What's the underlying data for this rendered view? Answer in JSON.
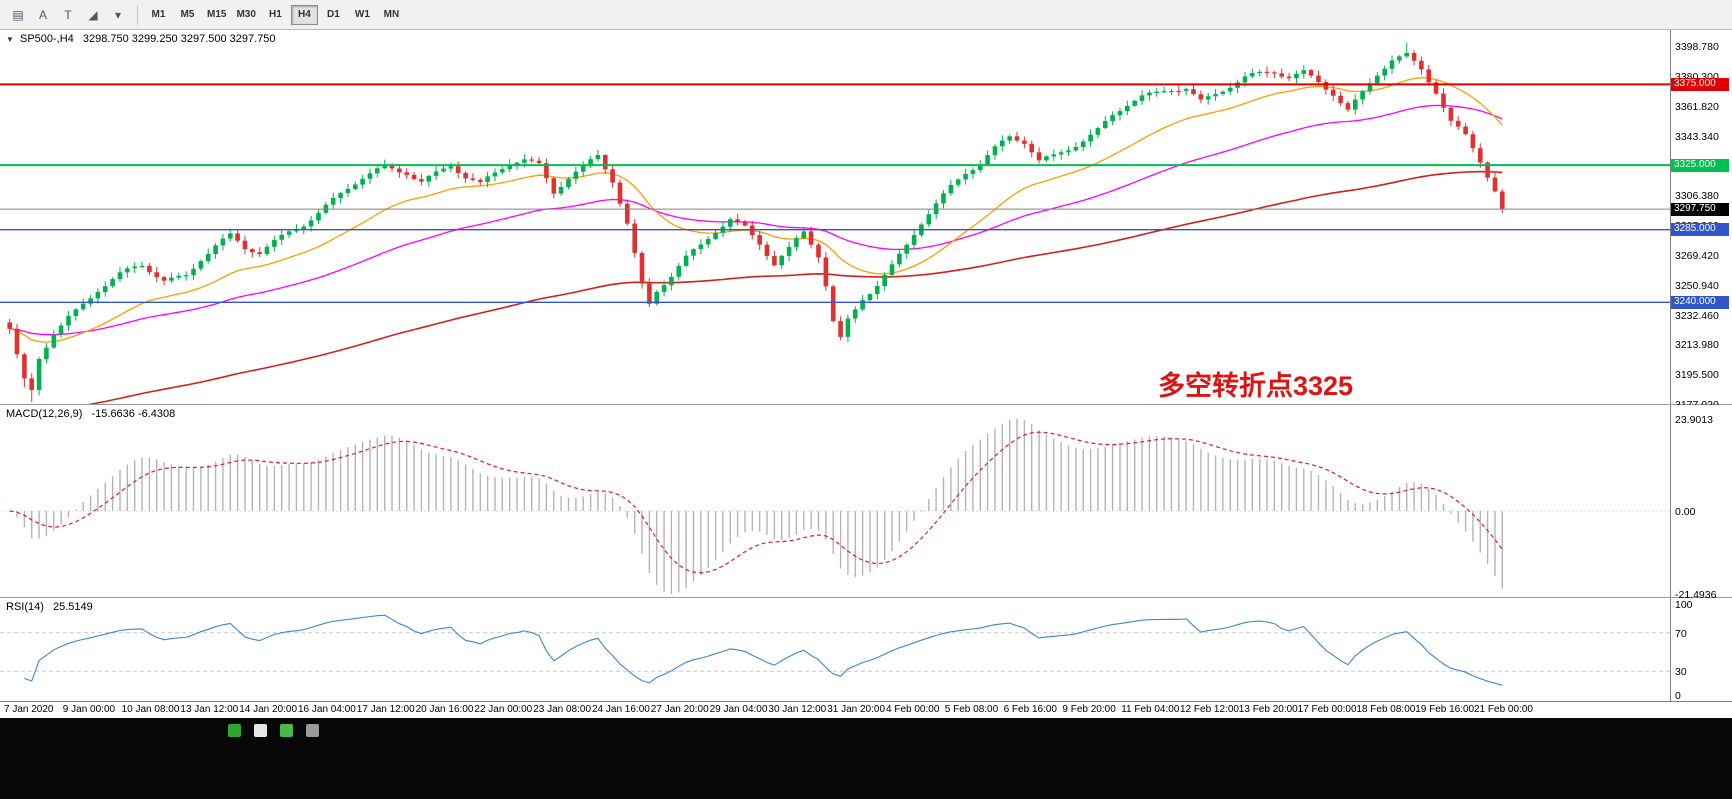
{
  "toolbar": {
    "icons": [
      {
        "name": "grid-icon",
        "glyph": "▤"
      },
      {
        "name": "cursor-a-icon",
        "glyph": "A"
      },
      {
        "name": "text-icon",
        "glyph": "T"
      },
      {
        "name": "shapes-icon",
        "glyph": "◢"
      },
      {
        "name": "dropdown-caret-icon",
        "glyph": "▾"
      }
    ],
    "timeframes": [
      "M1",
      "M5",
      "M15",
      "M30",
      "H1",
      "H4",
      "D1",
      "W1",
      "MN"
    ],
    "active_timeframe": "H4"
  },
  "chart": {
    "dropdown_glyph": "▼",
    "title_symbol": "SP500-,H4",
    "title_ohlc": "3298.750 3299.250 3297.500 3297.750",
    "annotation": "多空转折点3325",
    "price_axis_labels": [
      "3398.780",
      "3380.300",
      "3361.820",
      "3343.340",
      "3324.860",
      "3306.380",
      "3287.900",
      "3269.420",
      "3250.940",
      "3232.460",
      "3213.980",
      "3195.500",
      "3177.020"
    ],
    "price_max": 3398.78,
    "price_min": 3177.02,
    "hlines": [
      {
        "price": 3375.0,
        "label": "3375.000",
        "color": "#e00000",
        "thickness": 2
      },
      {
        "price": 3325.0,
        "label": "3325.000",
        "color": "#00c050",
        "thickness": 2
      },
      {
        "price": 3285.0,
        "label": "3285.000",
        "color": "#3355cc",
        "thickness": 1.4
      },
      {
        "price": 3240.0,
        "label": "3240.000",
        "color": "#3355cc",
        "thickness": 1.4
      }
    ],
    "current_price": 3297.75,
    "current_price_label": "3297.750"
  },
  "macd": {
    "label": "MACD(12,26,9)",
    "values_text": "-15.6636 -6.4308",
    "axis_labels": [
      "23.9013",
      "0.00",
      "-21.4936"
    ],
    "axis_values": [
      23.9013,
      0,
      -21.4936
    ]
  },
  "rsi": {
    "label": "RSI(14)",
    "value_text": "25.5149",
    "axis_labels": [
      "100",
      "70",
      "30",
      "0"
    ],
    "axis_values": [
      100,
      70,
      30,
      0
    ],
    "levels": [
      70,
      30
    ]
  },
  "time_axis": {
    "labels": [
      "7 Jan 2020",
      "9 Jan 00:00",
      "10 Jan 08:00",
      "13 Jan 12:00",
      "14 Jan 20:00",
      "16 Jan 04:00",
      "17 Jan 12:00",
      "20 Jan 16:00",
      "22 Jan 00:00",
      "23 Jan 08:00",
      "24 Jan 16:00",
      "27 Jan 20:00",
      "29 Jan 04:00",
      "30 Jan 12:00",
      "31 Jan 20:00",
      "4 Feb 00:00",
      "5 Feb 08:00",
      "6 Feb 16:00",
      "9 Feb 20:00",
      "11 Feb 04:00",
      "12 Feb 12:00",
      "13 Feb 20:00",
      "17 Feb 00:00",
      "18 Feb 08:00",
      "19 Feb 16:00",
      "21 Feb 00:00"
    ]
  },
  "chart_data": {
    "type": "candlestick",
    "symbol": "SP500-",
    "timeframe": "H4",
    "bars": 204,
    "price_anchors": [
      [
        0,
        3222
      ],
      [
        1,
        3205
      ],
      [
        2,
        3190
      ],
      [
        3,
        3184
      ],
      [
        4,
        3205
      ],
      [
        6,
        3222
      ],
      [
        8,
        3232
      ],
      [
        10,
        3240
      ],
      [
        12,
        3248
      ],
      [
        15,
        3256
      ],
      [
        18,
        3262
      ],
      [
        21,
        3254
      ],
      [
        24,
        3258
      ],
      [
        26,
        3268
      ],
      [
        28,
        3275
      ],
      [
        30,
        3280
      ],
      [
        32,
        3272
      ],
      [
        34,
        3270
      ],
      [
        36,
        3278
      ],
      [
        38,
        3285
      ],
      [
        40,
        3290
      ],
      [
        42,
        3296
      ],
      [
        45,
        3306
      ],
      [
        48,
        3316
      ],
      [
        51,
        3324
      ],
      [
        54,
        3322
      ],
      [
        56,
        3316
      ],
      [
        58,
        3320
      ],
      [
        60,
        3324
      ],
      [
        62,
        3316
      ],
      [
        64,
        3312
      ],
      [
        66,
        3320
      ],
      [
        68,
        3328
      ],
      [
        70,
        3330
      ],
      [
        72,
        3326
      ],
      [
        74,
        3308
      ],
      [
        76,
        3316
      ],
      [
        78,
        3322
      ],
      [
        80,
        3330
      ],
      [
        82,
        3316
      ],
      [
        84,
        3290
      ],
      [
        86,
        3252
      ],
      [
        87,
        3240
      ],
      [
        88,
        3248
      ],
      [
        90,
        3256
      ],
      [
        92,
        3266
      ],
      [
        94,
        3274
      ],
      [
        96,
        3284
      ],
      [
        98,
        3292
      ],
      [
        100,
        3288
      ],
      [
        102,
        3278
      ],
      [
        104,
        3264
      ],
      [
        106,
        3272
      ],
      [
        108,
        3282
      ],
      [
        110,
        3268
      ],
      [
        111,
        3250
      ],
      [
        112,
        3228
      ],
      [
        113,
        3218
      ],
      [
        114,
        3230
      ],
      [
        116,
        3244
      ],
      [
        118,
        3252
      ],
      [
        120,
        3262
      ],
      [
        122,
        3274
      ],
      [
        124,
        3288
      ],
      [
        126,
        3300
      ],
      [
        128,
        3312
      ],
      [
        130,
        3322
      ],
      [
        132,
        3328
      ],
      [
        134,
        3336
      ],
      [
        136,
        3342
      ],
      [
        138,
        3338
      ],
      [
        140,
        3326
      ],
      [
        142,
        3330
      ],
      [
        144,
        3336
      ],
      [
        146,
        3342
      ],
      [
        148,
        3348
      ],
      [
        150,
        3356
      ],
      [
        152,
        3362
      ],
      [
        154,
        3366
      ],
      [
        156,
        3368
      ],
      [
        158,
        3372
      ],
      [
        160,
        3374
      ],
      [
        162,
        3366
      ],
      [
        164,
        3370
      ],
      [
        166,
        3374
      ],
      [
        168,
        3378
      ],
      [
        170,
        3380
      ],
      [
        172,
        3382
      ],
      [
        174,
        3380
      ],
      [
        176,
        3384
      ],
      [
        178,
        3378
      ],
      [
        180,
        3370
      ],
      [
        182,
        3358
      ],
      [
        184,
        3368
      ],
      [
        186,
        3380
      ],
      [
        188,
        3390
      ],
      [
        190,
        3394
      ],
      [
        192,
        3386
      ],
      [
        194,
        3372
      ],
      [
        196,
        3352
      ],
      [
        198,
        3342
      ],
      [
        200,
        3326
      ],
      [
        202,
        3308
      ],
      [
        203,
        3297.75
      ]
    ]
  },
  "colors": {
    "bull": "#00b14f",
    "bear": "#e03030",
    "ma_fast": "#ff9d00",
    "ma_mid": "#ff00ff",
    "ma_slow": "#d02020",
    "current_line": "#808080",
    "macd_hist": "#b4b4b4",
    "macd_signal": "#e02020",
    "rsi_line": "#3f86cc",
    "level_dash": "#c8c8c8",
    "tag_current_bg": "#000000"
  },
  "taskbar": {
    "icons": [
      {
        "name": "taskbar-icon-1",
        "color": "#2fa52f"
      },
      {
        "name": "taskbar-icon-2",
        "color": "#e6e6e6"
      },
      {
        "name": "taskbar-icon-3",
        "color": "#49b849"
      },
      {
        "name": "taskbar-icon-4",
        "color": "#9a9a9a"
      }
    ]
  }
}
